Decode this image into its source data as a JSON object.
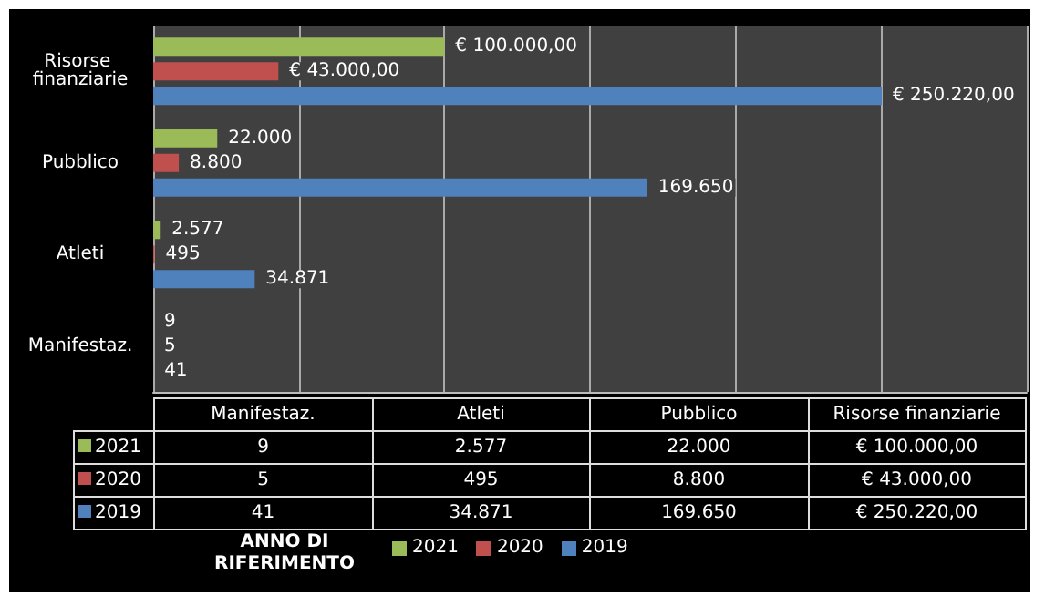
{
  "chart_data": {
    "type": "bar",
    "orientation": "horizontal",
    "categories": [
      "Risorse finanziarie",
      "Pubblico",
      "Atleti",
      "Manifestaz."
    ],
    "series": [
      {
        "name": "2021",
        "color": "#9bbb59",
        "values": [
          100000,
          22000,
          2577,
          9
        ],
        "value_labels": [
          "€ 100.000,00",
          "22.000",
          "2.577",
          "9"
        ]
      },
      {
        "name": "2020",
        "color": "#c0504d",
        "values": [
          43000,
          8800,
          495,
          5
        ],
        "value_labels": [
          "€ 43.000,00",
          "8.800",
          "495",
          "5"
        ]
      },
      {
        "name": "2019",
        "color": "#4f81bd",
        "values": [
          250220,
          169650,
          34871,
          41
        ],
        "value_labels": [
          "€ 250.220,00",
          "169.650",
          "34.871",
          "41"
        ]
      }
    ],
    "xlim": [
      0,
      300000
    ],
    "xticks": [
      {
        "value": 0,
        "label": null
      },
      {
        "value": 50000,
        "label": null
      },
      {
        "value": 100000,
        "label": null
      },
      {
        "value": 150000,
        "label": null
      },
      {
        "value": 200000,
        "label": null
      },
      {
        "value": 250000,
        "label": null
      },
      {
        "value": 300000,
        "label": null
      }
    ],
    "grid": "x",
    "legend": "bottom",
    "legend_title": "ANNO DI RIFERIMENTO"
  }
}
